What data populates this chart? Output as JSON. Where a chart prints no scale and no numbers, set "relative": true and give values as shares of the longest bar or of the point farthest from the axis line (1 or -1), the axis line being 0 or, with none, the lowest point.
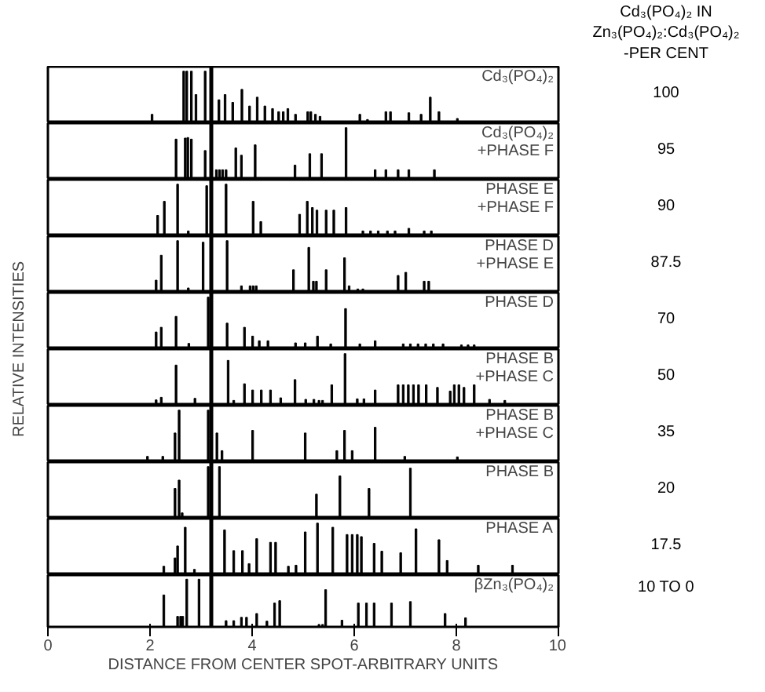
{
  "chart_data": [
    {
      "type": "bar",
      "relative": true,
      "title": "Cd₃(PO₄)₂",
      "xlim": [
        0,
        10
      ],
      "tick_labels": false,
      "ref_lines": [
        {
          "axis": "x",
          "value": 3.2,
          "color": "#000000"
        }
      ],
      "annotations": [
        "Cd₃(PO₄)₂ IN\nZn₃(PO₄)₂:Cd₃(PO₄)₂\n-PER CENT",
        "100"
      ],
      "color": "#000000",
      "x": [
        2.04,
        2.66,
        2.72,
        2.81,
        2.9,
        3.08,
        3.35,
        3.47,
        3.62,
        3.8,
        3.95,
        4.1,
        4.25,
        4.4,
        4.52,
        4.61,
        4.7,
        4.85,
        5.09,
        5.15,
        5.24,
        5.33,
        6.11,
        6.26,
        6.62,
        6.71,
        7.07,
        7.31,
        7.49,
        7.66,
        8.02
      ],
      "values": [
        0.17,
        1,
        1,
        1,
        0.55,
        1,
        0.45,
        0.55,
        0.4,
        0.65,
        0.33,
        0.5,
        0.33,
        0.28,
        0.22,
        0.22,
        0.28,
        0.17,
        0.22,
        0.22,
        0.17,
        0.13,
        0.17,
        0.07,
        0.22,
        0.22,
        0.2,
        0.17,
        0.5,
        0.22,
        0.09
      ]
    },
    {
      "type": "bar",
      "relative": true,
      "title": "Cd₃(PO₄)₂\n+PHASE F",
      "xlim": [
        0,
        10
      ],
      "tick_labels": false,
      "ref_lines": [
        {
          "axis": "x",
          "value": 3.2,
          "color": "#000000"
        }
      ],
      "annotations": [
        "95"
      ],
      "color": "#000000",
      "x": [
        2.51,
        2.69,
        2.74,
        2.81,
        3.08,
        3.3,
        3.36,
        3.42,
        3.49,
        3.68,
        3.79,
        4.06,
        4.84,
        5.13,
        5.36,
        5.84,
        6.41,
        6.62,
        6.86,
        7.07,
        7.57
      ],
      "values": [
        0.78,
        0.8,
        0.81,
        0.78,
        0.56,
        0.19,
        0.19,
        0.19,
        0.19,
        0.61,
        0.47,
        0.67,
        0.28,
        0.5,
        0.5,
        1,
        0.19,
        0.19,
        0.19,
        0.19,
        0.19
      ]
    },
    {
      "type": "bar",
      "relative": true,
      "title": "PHASE E\n+PHASE F",
      "xlim": [
        0,
        10
      ],
      "tick_labels": false,
      "ref_lines": [
        {
          "axis": "x",
          "value": 3.2,
          "color": "#000000"
        }
      ],
      "annotations": [
        "90"
      ],
      "color": "#000000",
      "x": [
        2.15,
        2.28,
        2.54,
        2.75,
        3.11,
        3.49,
        4.02,
        4.17,
        4.93,
        5.08,
        5.18,
        5.27,
        5.45,
        5.6,
        5.84,
        6.17,
        6.32,
        6.47,
        6.65,
        6.8,
        7.07,
        7.37,
        7.51
      ],
      "values": [
        0.4,
        0.67,
        1,
        0.1,
        0.97,
        1,
        0.67,
        0.28,
        0.42,
        0.67,
        0.55,
        0.5,
        0.5,
        0.5,
        0.55,
        0.1,
        0.1,
        0.1,
        0.1,
        0.1,
        0.15,
        0.1,
        0.1
      ]
    },
    {
      "type": "bar",
      "relative": true,
      "title": "PHASE D\n+PHASE E",
      "xlim": [
        0,
        10
      ],
      "tick_labels": false,
      "ref_lines": [
        {
          "axis": "x",
          "value": 3.2,
          "color": "#000000"
        }
      ],
      "annotations": [
        "87.5"
      ],
      "color": "#000000",
      "x": [
        2.12,
        2.22,
        2.54,
        2.75,
        3.04,
        3.51,
        3.79,
        3.96,
        4.02,
        4.08,
        4.81,
        5.11,
        5.2,
        5.26,
        5.45,
        5.81,
        5.9,
        6.07,
        6.17,
        6.86,
        7.01,
        7.37,
        7.46
      ],
      "values": [
        0.24,
        0.72,
        1,
        0.09,
        0.97,
        1,
        0.13,
        0.13,
        0.13,
        0.13,
        0.44,
        0.87,
        0.22,
        0.22,
        0.44,
        0.67,
        0.13,
        0.07,
        0.07,
        0.33,
        0.39,
        0.22,
        0.22
      ]
    },
    {
      "type": "bar",
      "relative": true,
      "title": "PHASE D",
      "ylabel": "RELATIVE INTENSITIES",
      "xlim": [
        0,
        10
      ],
      "tick_labels": false,
      "ref_lines": [
        {
          "axis": "x",
          "value": 3.2,
          "color": "#000000"
        }
      ],
      "annotations": [
        "70"
      ],
      "color": "#000000",
      "x": [
        2.12,
        2.22,
        2.51,
        2.76,
        3.14,
        3.51,
        3.85,
        4.01,
        4.14,
        4.31,
        4.85,
        5.04,
        5.28,
        5.54,
        5.83,
        6.11,
        6.41,
        6.96,
        7.1,
        7.25,
        7.4,
        7.55,
        7.74,
        8.1,
        8.23,
        8.35
      ],
      "values": [
        0.33,
        0.42,
        0.63,
        0.11,
        1,
        0.5,
        0.42,
        0.25,
        0.16,
        0.16,
        0.12,
        0.12,
        0.25,
        0.1,
        0.78,
        0.1,
        0.16,
        0.1,
        0.1,
        0.1,
        0.1,
        0.1,
        0.1,
        0.08,
        0.08,
        0.08
      ]
    },
    {
      "type": "bar",
      "relative": true,
      "title": "PHASE B\n+PHASE C",
      "xlim": [
        0,
        10
      ],
      "tick_labels": false,
      "ref_lines": [
        {
          "axis": "x",
          "value": 3.2,
          "color": "#000000"
        }
      ],
      "annotations": [
        "50"
      ],
      "color": "#000000",
      "x": [
        2.12,
        2.22,
        2.51,
        2.88,
        3.53,
        3.64,
        3.85,
        4.01,
        4.18,
        4.36,
        4.56,
        4.84,
        5.05,
        5.21,
        5.31,
        5.38,
        5.56,
        5.82,
        6.06,
        6.19,
        6.41,
        6.86,
        6.96,
        7.06,
        7.16,
        7.26,
        7.41,
        7.63,
        7.88,
        7.96,
        8.05,
        8.15,
        8.35,
        8.65,
        8.95
      ],
      "values": [
        0.11,
        0.16,
        0.78,
        0.14,
        0.87,
        0.1,
        0.42,
        0.3,
        0.3,
        0.3,
        0.15,
        0.5,
        0.12,
        0.12,
        0.1,
        0.1,
        0.4,
        1,
        0.13,
        0.13,
        0.3,
        0.4,
        0.4,
        0.4,
        0.4,
        0.4,
        0.4,
        0.35,
        0.28,
        0.4,
        0.4,
        0.35,
        0.4,
        0.12,
        0.1
      ]
    },
    {
      "type": "bar",
      "relative": true,
      "title": "PHASE B\n+PHASE C",
      "xlim": [
        0,
        10
      ],
      "tick_labels": false,
      "ref_lines": [
        {
          "axis": "x",
          "value": 3.2,
          "color": "#000000"
        }
      ],
      "annotations": [
        "35"
      ],
      "color": "#000000",
      "x": [
        1.95,
        2.25,
        2.49,
        2.57,
        3.14,
        3.31,
        3.41,
        4.01,
        5.04,
        5.66,
        5.81,
        5.96,
        6.41,
        6.99,
        8.02
      ],
      "values": [
        0.11,
        0.11,
        0.56,
        1,
        1,
        0.56,
        0.22,
        0.61,
        0.56,
        0.22,
        0.61,
        0.22,
        0.67,
        0.11,
        0.1
      ]
    },
    {
      "type": "bar",
      "relative": true,
      "title": "PHASE B",
      "xlim": [
        0,
        10
      ],
      "tick_labels": false,
      "ref_lines": [
        {
          "axis": "x",
          "value": 3.2,
          "color": "#000000"
        }
      ],
      "annotations": [
        "20"
      ],
      "color": "#000000",
      "x": [
        2.49,
        2.57,
        2.63,
        3.14,
        3.36,
        5.26,
        5.72,
        6.29,
        7.1
      ],
      "values": [
        0.58,
        0.74,
        0.11,
        1,
        1,
        0.47,
        0.82,
        0.58,
        0.97
      ]
    },
    {
      "type": "bar",
      "relative": true,
      "title": "PHASE A",
      "xlim": [
        0,
        10
      ],
      "tick_labels": false,
      "ref_lines": [
        {
          "axis": "x",
          "value": 3.2,
          "color": "#000000"
        }
      ],
      "annotations": [
        "17.5"
      ],
      "color": "#000000",
      "x": [
        2.27,
        2.49,
        2.54,
        2.69,
        2.87,
        3.46,
        3.64,
        3.81,
        3.94,
        4.09,
        4.36,
        4.46,
        4.71,
        4.86,
        5.04,
        5.28,
        5.58,
        5.86,
        5.96,
        6.06,
        6.14,
        6.39,
        6.54,
        6.91,
        7.21,
        7.66,
        7.82,
        8.43,
        9.1
      ],
      "values": [
        0.17,
        0.33,
        0.56,
        0.92,
        0.11,
        0.87,
        0.47,
        0.47,
        0.22,
        0.7,
        0.63,
        0.63,
        0.17,
        0.19,
        0.83,
        1,
        0.92,
        0.78,
        0.78,
        0.78,
        0.74,
        0.61,
        0.46,
        0.43,
        0.89,
        0.68,
        0.28,
        0.19,
        0.19
      ]
    },
    {
      "type": "bar",
      "relative": true,
      "title": "βZn₃(PO₄)₂",
      "xlabel": "DISTANCE FROM CENTER SPOT-ARBITRARY UNITS",
      "xlim": [
        0,
        10
      ],
      "xticks": [
        0,
        2,
        4,
        6,
        8,
        10
      ],
      "tick_labels": "x",
      "ref_lines": [
        {
          "axis": "x",
          "value": 3.2,
          "color": "#000000"
        }
      ],
      "annotations": [
        "10 TO 0"
      ],
      "color": "#000000",
      "x": [
        2.27,
        2.54,
        2.6,
        2.64,
        2.72,
        2.96,
        3.49,
        3.64,
        3.79,
        3.89,
        4.09,
        4.29,
        4.44,
        4.54,
        5.31,
        5.38,
        5.44,
        5.76,
        6.08,
        6.24,
        6.39,
        6.73,
        7.1,
        7.78,
        8.18
      ],
      "values": [
        0.67,
        0.22,
        0.22,
        0.22,
        1,
        1,
        0.13,
        0.13,
        0.2,
        0.2,
        0.28,
        0.12,
        0.5,
        0.55,
        0.05,
        0.05,
        0.78,
        0.14,
        0.5,
        0.5,
        0.5,
        0.5,
        0.53,
        0.28,
        0.19
      ]
    }
  ]
}
